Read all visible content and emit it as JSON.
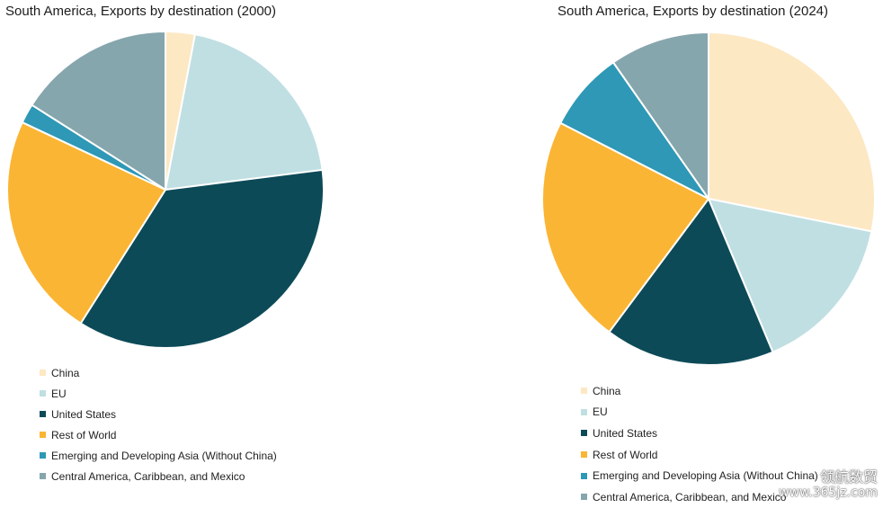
{
  "colors": {
    "China": "#fde8c4",
    "EU": "#c0dfe2",
    "United States": "#0d4a58",
    "Rest of World": "#fbb534",
    "Emerging and Developing Asia (Without China)": "#2e98b6",
    "Central America, Caribbean, and Mexico": "#86a6ad"
  },
  "chart_data": [
    {
      "type": "pie",
      "title": "South America, Exports by destination (2000)",
      "categories": [
        "China",
        "EU",
        "United States",
        "Rest of World",
        "Emerging and Developing Asia (Without China)",
        "Central America, Caribbean, and Mexico"
      ],
      "values": [
        3,
        20,
        36,
        23,
        2,
        16
      ],
      "legend": [
        "China",
        "EU",
        "United States",
        "Rest of World",
        "Emerging and Developing Asia (Without China)",
        "Central America, Caribbean, and Mexico"
      ],
      "legend_position": "bottom-left"
    },
    {
      "type": "pie",
      "title": "South America, Exports by destination (2024)",
      "categories": [
        "China",
        "EU",
        "United States",
        "Rest of World",
        "Emerging and Developing Asia (Without China)",
        "Central America, Caribbean, and Mexico"
      ],
      "values": [
        29,
        16,
        17,
        23,
        8,
        10
      ],
      "legend": [
        "China",
        "EU",
        "United States",
        "Rest of World",
        "Emerging and Developing Asia (Without China)",
        "Central America, Caribbean, and Mexico"
      ],
      "legend_position": "bottom-left"
    }
  ],
  "watermark": {
    "brand": "领航数贸",
    "url": "www.365jz.com"
  }
}
